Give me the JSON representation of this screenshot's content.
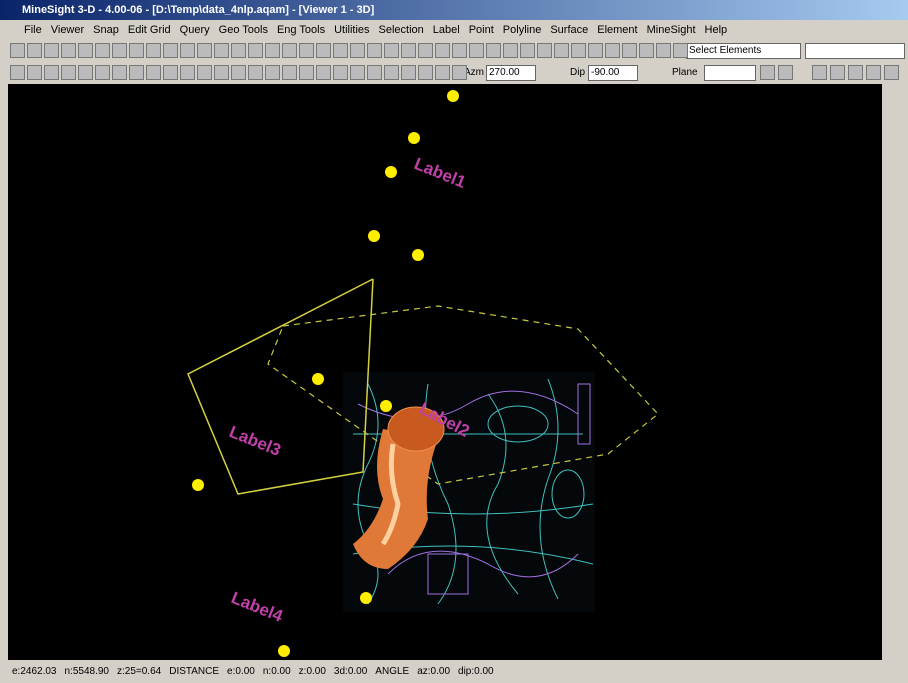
{
  "window": {
    "title": "MineSight 3-D - 4.00-06 - [D:\\Temp\\data_4nlp.aqam] - [Viewer 1 - 3D]"
  },
  "menu": [
    "File",
    "Viewer",
    "Snap",
    "Edit Grid",
    "Query",
    "Geo Tools",
    "Eng Tools",
    "Utilities",
    "Selection",
    "Label",
    "Point",
    "Polyline",
    "Surface",
    "Element",
    "MineSight",
    "Help"
  ],
  "toolbar": {
    "selection_mode": "Select Elements",
    "azimuth_label": "Azm",
    "azimuth": "270.00",
    "dip_label": "Dip",
    "dip": "-90.00",
    "plane_label": "Plane"
  },
  "viewport": {
    "labels": [
      "Label1",
      "Label2",
      "Label3",
      "Label4"
    ]
  },
  "status_bar": [
    "e:2462.03",
    "n:5548.90",
    "z:25=0.64",
    "DISTANCE",
    "e:0.00",
    "n:0.00",
    "z:0.00",
    "3d:0.00",
    "ANGLE",
    "az:0.00",
    "dip:0.00"
  ]
}
